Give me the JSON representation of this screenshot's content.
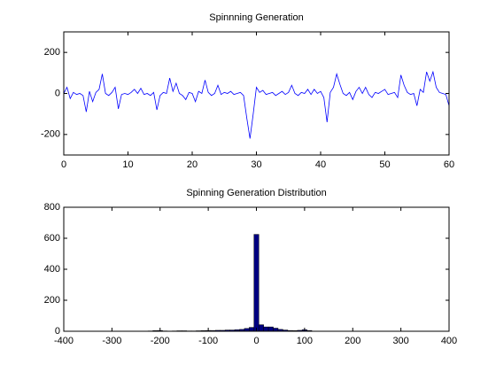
{
  "chart_data": [
    {
      "type": "line",
      "title": "Spinnning Generation",
      "x": [
        0,
        0.5,
        1,
        1.5,
        2,
        2.5,
        3,
        3.5,
        4,
        4.5,
        5,
        5.5,
        6,
        6.5,
        7,
        7.5,
        8,
        8.5,
        9,
        9.5,
        10,
        10.5,
        11,
        11.5,
        12,
        12.5,
        13,
        13.5,
        14,
        14.5,
        15,
        15.5,
        16,
        16.5,
        17,
        17.5,
        18,
        18.5,
        19,
        19.5,
        20,
        20.5,
        21,
        21.5,
        22,
        22.5,
        23,
        23.5,
        24,
        24.5,
        25,
        25.5,
        26,
        26.5,
        27,
        27.5,
        28,
        28.5,
        29,
        29.5,
        30,
        30.5,
        31,
        31.5,
        32,
        32.5,
        33,
        33.5,
        34,
        34.5,
        35,
        35.5,
        36,
        36.5,
        37,
        37.5,
        38,
        38.5,
        39,
        39.5,
        40,
        40.5,
        41,
        41.5,
        42,
        42.5,
        43,
        43.5,
        44,
        44.5,
        45,
        45.5,
        46,
        46.5,
        47,
        47.5,
        48,
        48.5,
        49,
        49.5,
        50,
        50.5,
        51,
        51.5,
        52,
        52.5,
        53,
        53.5,
        54,
        54.5,
        55,
        55.5,
        56,
        56.5,
        57,
        57.5,
        58,
        58.5,
        59,
        59.5,
        60
      ],
      "series": [
        {
          "color": "#0000ff",
          "values": [
            0,
            30,
            -25,
            5,
            -5,
            0,
            -10,
            -90,
            10,
            -40,
            5,
            20,
            95,
            0,
            -10,
            5,
            30,
            -75,
            -5,
            0,
            -5,
            5,
            20,
            0,
            25,
            -5,
            0,
            -10,
            5,
            -80,
            -10,
            5,
            0,
            75,
            10,
            50,
            0,
            -10,
            -30,
            5,
            0,
            -40,
            10,
            0,
            65,
            5,
            -10,
            0,
            40,
            -5,
            5,
            0,
            10,
            -5,
            0,
            5,
            -10,
            -120,
            -220,
            -100,
            30,
            5,
            15,
            -5,
            0,
            5,
            -10,
            0,
            10,
            -5,
            5,
            40,
            0,
            -10,
            5,
            0,
            20,
            -5,
            20,
            0,
            10,
            -20,
            -140,
            5,
            30,
            95,
            45,
            0,
            -10,
            5,
            -30,
            10,
            30,
            0,
            30,
            -5,
            -20,
            5,
            0,
            10,
            20,
            -5,
            0,
            5,
            -20,
            90,
            40,
            5,
            -5,
            0,
            -60,
            20,
            5,
            105,
            60,
            105,
            30,
            5,
            0,
            -5,
            -60
          ]
        }
      ],
      "xlim": [
        0,
        60
      ],
      "xticks": [
        0,
        10,
        20,
        30,
        40,
        50,
        60
      ],
      "ylim": [
        -300,
        300
      ],
      "yticks": [
        -200,
        0,
        200
      ]
    },
    {
      "type": "histogram",
      "title": "Spinning Generation Distribution",
      "color": "#000080",
      "bins": [
        -225,
        -215,
        -205,
        -195,
        -185,
        -175,
        -165,
        -155,
        -145,
        -135,
        -125,
        -115,
        -105,
        -95,
        -85,
        -75,
        -65,
        -55,
        -45,
        -35,
        -25,
        -15,
        -5,
        5,
        15,
        25,
        35,
        45,
        55,
        65,
        75,
        85,
        95,
        105,
        115
      ],
      "values": [
        2,
        4,
        5,
        2,
        1,
        2,
        3,
        3,
        2,
        2,
        3,
        4,
        5,
        5,
        6,
        6,
        8,
        8,
        10,
        12,
        18,
        25,
        625,
        42,
        28,
        28,
        20,
        12,
        8,
        5,
        4,
        6,
        10,
        5
      ],
      "xlim": [
        -400,
        400
      ],
      "xticks": [
        -400,
        -300,
        -200,
        -100,
        0,
        100,
        200,
        300,
        400
      ],
      "ylim": [
        0,
        800
      ],
      "yticks": [
        0,
        200,
        400,
        600,
        800
      ]
    }
  ]
}
